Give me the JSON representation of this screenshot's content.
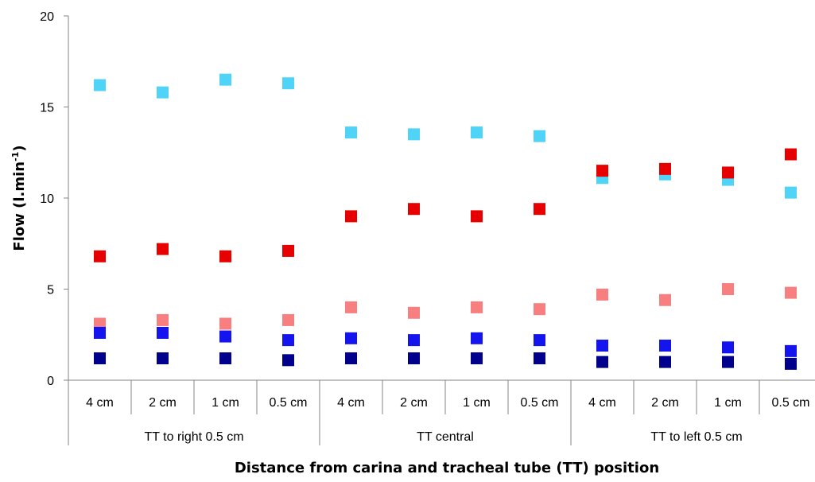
{
  "chart_data": {
    "type": "scatter",
    "title": "",
    "xlabel": "Distance from carina and tracheal tube (TT) position",
    "ylabel_main": "Flow (l.min",
    "ylabel_sup": "-1",
    "ylabel_end": ")",
    "ylim": [
      0,
      20
    ],
    "yticks": [
      "0",
      "5",
      "10",
      "15",
      "20"
    ],
    "grid": false,
    "legend": "none",
    "groups": [
      {
        "label": "TT to right 0.5 cm",
        "categories": [
          "4 cm",
          "2 cm",
          "1 cm",
          "0.5 cm"
        ]
      },
      {
        "label": "TT central",
        "categories": [
          "4 cm",
          "2 cm",
          "1 cm",
          "0.5 cm"
        ]
      },
      {
        "label": "TT to left 0.5 cm",
        "categories": [
          "4 cm",
          "2 cm",
          "1 cm",
          "0.5 cm"
        ]
      }
    ],
    "series": [
      {
        "color": "#4fd4f7",
        "values": [
          16.2,
          15.8,
          16.5,
          16.3,
          13.6,
          13.5,
          13.6,
          13.4,
          11.1,
          11.3,
          11.0,
          10.3
        ]
      },
      {
        "color": "#e60000",
        "values": [
          6.8,
          7.2,
          6.8,
          7.1,
          9.0,
          9.4,
          9.0,
          9.4,
          11.5,
          11.6,
          11.4,
          12.4
        ]
      },
      {
        "color": "#f77f7f",
        "values": [
          3.1,
          3.3,
          3.1,
          3.3,
          4.0,
          3.7,
          4.0,
          3.9,
          4.7,
          4.4,
          5.0,
          4.8
        ]
      },
      {
        "color": "#1414ee",
        "values": [
          2.6,
          2.6,
          2.4,
          2.2,
          2.3,
          2.2,
          2.3,
          2.2,
          1.9,
          1.9,
          1.8,
          1.6
        ]
      },
      {
        "color": "#00008c",
        "values": [
          1.2,
          1.2,
          1.2,
          1.1,
          1.2,
          1.2,
          1.2,
          1.2,
          1.0,
          1.0,
          1.0,
          0.9
        ]
      }
    ]
  }
}
